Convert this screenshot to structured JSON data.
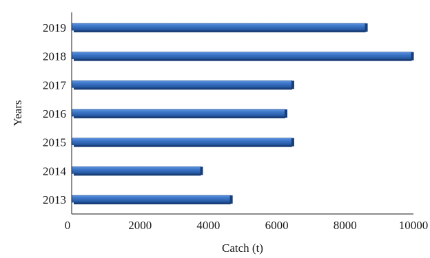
{
  "chart_data": {
    "type": "bar",
    "orientation": "horizontal",
    "categories": [
      "2019",
      "2018",
      "2017",
      "2016",
      "2015",
      "2014",
      "2013"
    ],
    "values": [
      8600,
      9950,
      6450,
      6250,
      6450,
      3780,
      4650
    ],
    "xlabel": "Catch (t)",
    "ylabel": "Years",
    "xlim": [
      0,
      10000
    ],
    "xticks": [
      "0",
      "2000",
      "4000",
      "6000",
      "8000",
      "10000"
    ],
    "grid": false,
    "legend": "none",
    "bar_color": "#3a72c4",
    "bar_edge_color": "#1f4f96"
  }
}
